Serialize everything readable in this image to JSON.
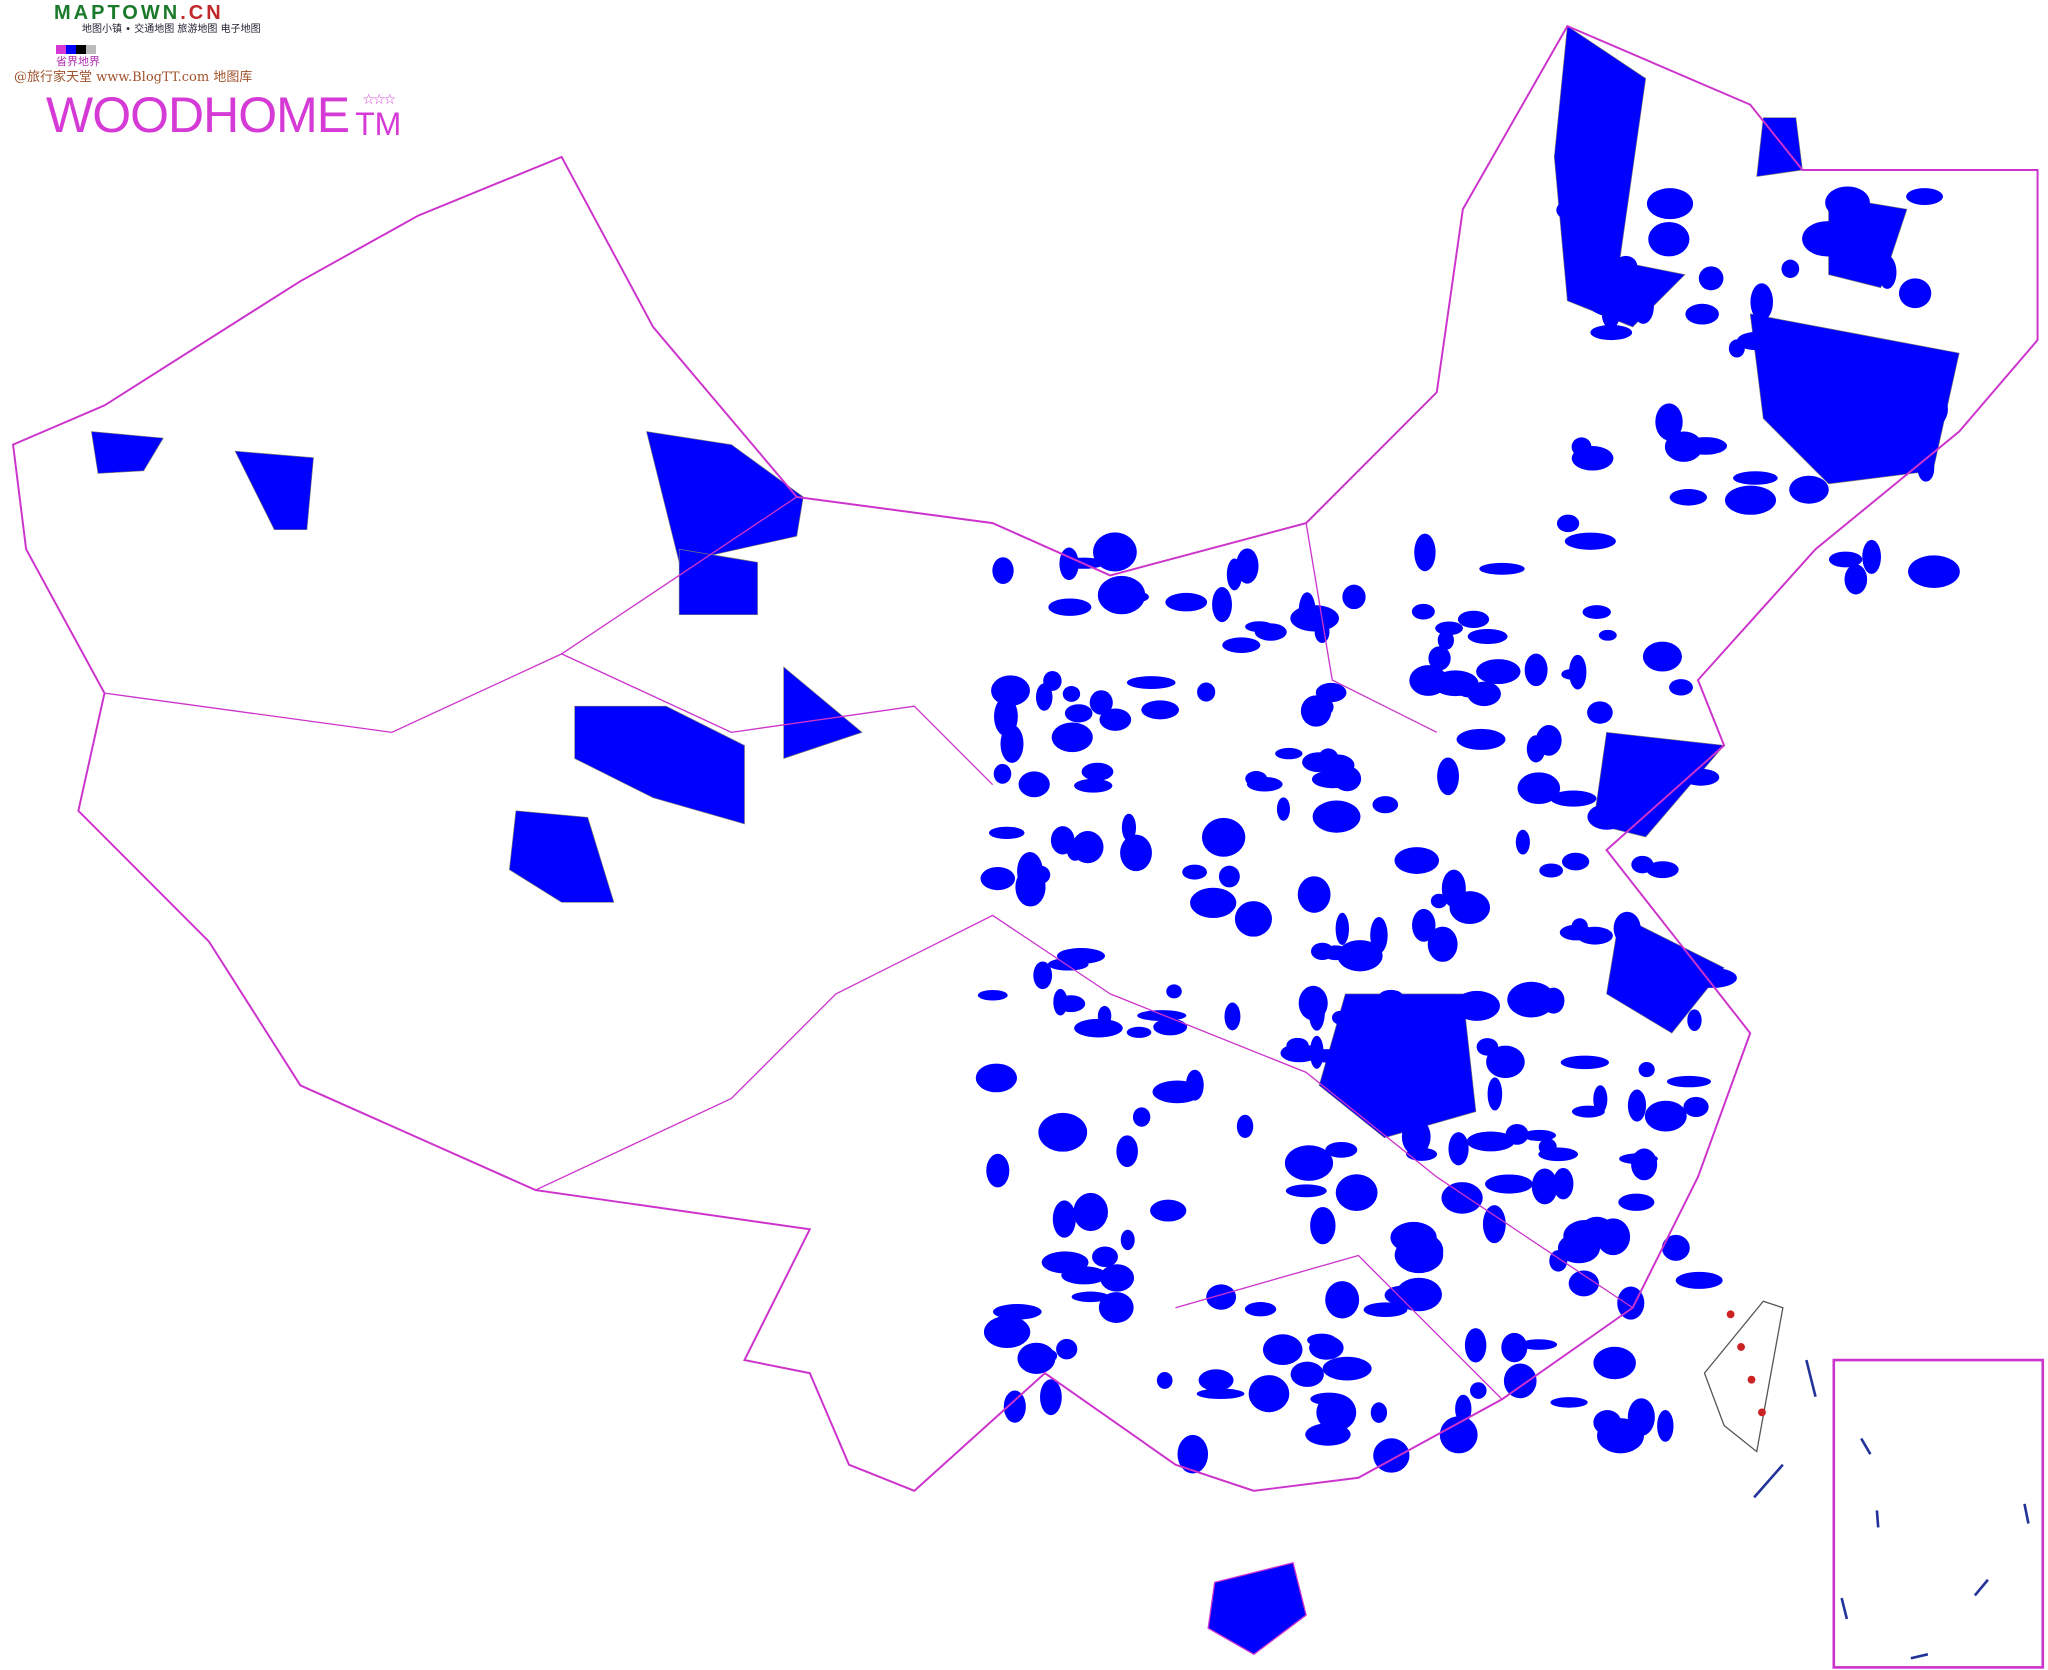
{
  "brand": {
    "logo_main": "MAPTOWN",
    "logo_suffix": ".CN",
    "tagline": "地图小镇 • 交通地图 旅游地图 电子地图"
  },
  "legend": {
    "label": "省界地界",
    "swatches": [
      "#d63ad6",
      "#0000ff",
      "#000000",
      "#bbbbbb"
    ]
  },
  "watermark": {
    "credit": "@旅行家天堂 www.BlogTT.com 地图库",
    "name": "WOODHOME",
    "stars": "☆☆☆",
    "tm": "TM"
  },
  "map": {
    "highlight_color": "#0000ff",
    "province_border_color": "#cc33cc",
    "county_border_color": "#999999",
    "special_marker_color": "#cc2222"
  }
}
